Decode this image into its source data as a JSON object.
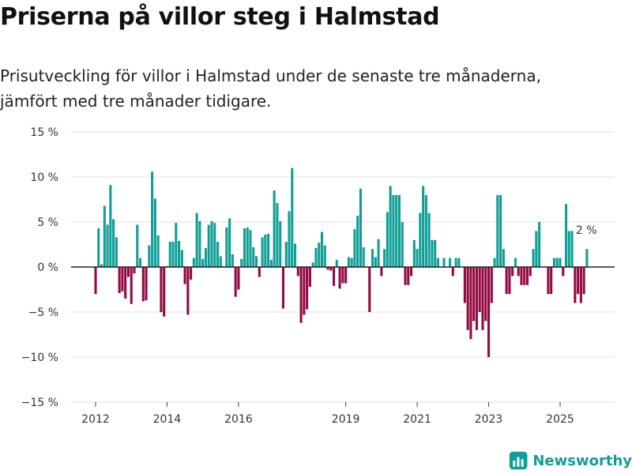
{
  "chart_data": {
    "title": "Priserna på villor steg i Halmstad",
    "subtitle_line1": "Prisutveckling för villor i Halmstad under de senaste tre månaderna,",
    "subtitle_line2": "jämfört med tre månader tidigare.",
    "type": "bar",
    "ylim": [
      -15,
      15
    ],
    "y_ticks": [
      15,
      10,
      5,
      0,
      -5,
      -10,
      -15
    ],
    "y_tick_labels": [
      "15 %",
      "10 %",
      "5 %",
      "0 %",
      "−5 %",
      "−10 %",
      "−15 %"
    ],
    "x_ticks": [
      2012,
      2014,
      2016,
      2019,
      2021,
      2023,
      2025
    ],
    "x_tick_labels": [
      "2012",
      "2014",
      "2016",
      "2019",
      "2021",
      "2023",
      "2025"
    ],
    "start_year": 2012,
    "start_month": 1,
    "values": [
      -3.0,
      4.3,
      0.3,
      6.8,
      4.7,
      9.1,
      5.3,
      3.3,
      -2.9,
      -2.7,
      -3.5,
      -1.1,
      -4.1,
      -0.7,
      4.7,
      1.0,
      -3.8,
      -3.7,
      2.4,
      10.6,
      7.6,
      3.5,
      -5.0,
      -5.5,
      0.1,
      2.8,
      2.8,
      4.9,
      2.9,
      1.9,
      -1.9,
      -5.3,
      -1.4,
      1.0,
      6.0,
      5.1,
      0.9,
      2.1,
      4.7,
      5.1,
      4.9,
      2.8,
      1.2,
      0.1,
      4.4,
      5.4,
      1.4,
      -3.3,
      -2.5,
      0.9,
      4.3,
      4.4,
      4.1,
      2.2,
      1.2,
      -1.1,
      3.3,
      3.6,
      3.7,
      0.8,
      8.5,
      7.1,
      5.1,
      -4.6,
      2.8,
      6.2,
      11.0,
      2.6,
      -1.0,
      -6.2,
      -5.3,
      -4.7,
      -2.2,
      0.5,
      2.1,
      2.7,
      3.9,
      2.4,
      -0.3,
      -0.4,
      -2.1,
      0.8,
      -2.4,
      -1.8,
      -1.8,
      1.1,
      1.0,
      4.2,
      5.7,
      8.7,
      2.2,
      0.1,
      -5.0,
      2.0,
      1.1,
      3.1,
      -1.0,
      2.0,
      6.1,
      9.0,
      8.0,
      8.0,
      8.0,
      5.0,
      -2.0,
      -2.0,
      -1.0,
      3.0,
      2.0,
      6.0,
      9.0,
      8.0,
      6.0,
      3.0,
      3.0,
      1.0,
      0.0,
      1.0,
      0.0,
      1.0,
      -1.0,
      1.0,
      1.0,
      0.0,
      -4.0,
      -7.0,
      -8.0,
      -6.0,
      -7.0,
      -5.0,
      -7.0,
      -6.0,
      -10.0,
      -4.0,
      1.0,
      8.0,
      8.0,
      2.0,
      -3.0,
      -3.0,
      -1.0,
      1.0,
      -1.0,
      -2.0,
      -2.0,
      -2.0,
      -1.0,
      2.0,
      4.0,
      5.0,
      0.0,
      0.0,
      -3.0,
      -3.0,
      1.0,
      1.0,
      1.0,
      -1.0,
      7.0,
      4.0,
      4.0,
      -4.0,
      -3.0,
      -4.0,
      -3.0,
      2.0
    ],
    "last_label": "2 %",
    "positive_color": "#0f9f96",
    "negative_color": "#930a42"
  },
  "branding": {
    "name": "Newsworthy",
    "color": "#0f9f96"
  }
}
